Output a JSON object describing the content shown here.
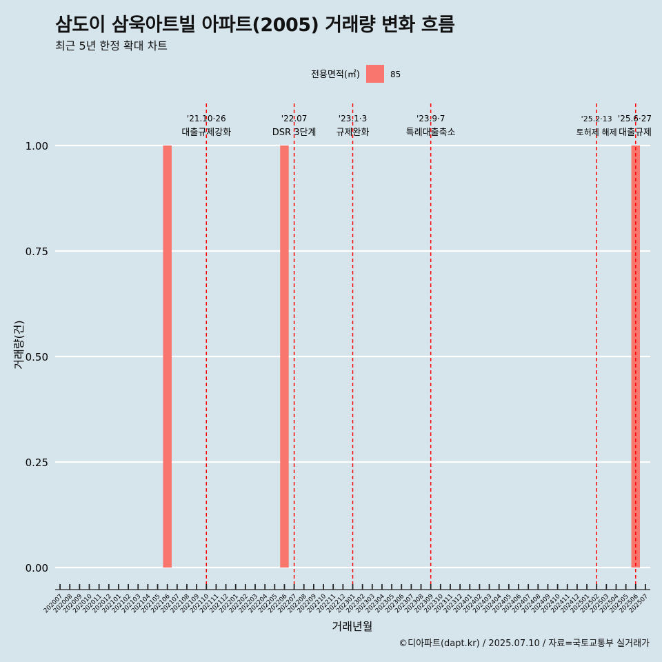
{
  "title": "삼도이 삼욱아트빌 아파트(2005) 거래량 변화 흐름",
  "subtitle": "최근 5년 한정 확대 차트",
  "caption": "©디아파트(dapt.kr) / 2025.07.10 / 자료=국토교통부 실거래가",
  "colors": {
    "background": "#d6e4eb",
    "bar": "#f8766d",
    "grid": "#ffffff",
    "event_line": "#ff0000"
  },
  "chart_data": {
    "type": "bar",
    "xlabel": "거래년월",
    "ylabel": "거래량(건)",
    "ylim": [
      0,
      1
    ],
    "yticks": [
      "0.00",
      "0.25",
      "0.50",
      "0.75",
      "1.00"
    ],
    "legend": {
      "title": "전용면적(㎡)",
      "position": "top"
    },
    "categories": [
      "202007",
      "202008",
      "202009",
      "202010",
      "202011",
      "202012",
      "202101",
      "202102",
      "202103",
      "202104",
      "202105",
      "202106",
      "202107",
      "202108",
      "202109",
      "202110",
      "202111",
      "202112",
      "202201",
      "202202",
      "202203",
      "202204",
      "202205",
      "202206",
      "202207",
      "202208",
      "202209",
      "202210",
      "202211",
      "202212",
      "202301",
      "202302",
      "202303",
      "202304",
      "202305",
      "202306",
      "202307",
      "202308",
      "202309",
      "202310",
      "202311",
      "202312",
      "202401",
      "202402",
      "202403",
      "202404",
      "202405",
      "202406",
      "202407",
      "202408",
      "202409",
      "202410",
      "202411",
      "202412",
      "202501",
      "202502",
      "202503",
      "202504",
      "202505",
      "202506",
      "202507"
    ],
    "series": [
      {
        "name": "85",
        "bars": [
          {
            "x": "202106",
            "value": 1
          },
          {
            "x": "202206",
            "value": 1
          },
          {
            "x": "202506",
            "value": 1
          }
        ]
      }
    ],
    "events": [
      {
        "x": "202110",
        "date": "'21.10·26",
        "label": "대출규제강화"
      },
      {
        "x": "202207",
        "date": "'22.07",
        "label": "DSR 3단계"
      },
      {
        "x": "202301",
        "date": "'23.1·3",
        "label": "규제완화"
      },
      {
        "x": "202309",
        "date": "'23.9·7",
        "label": "특례대출축소"
      },
      {
        "x": "202502",
        "date": "'25.2·13",
        "label": "토허제 해제"
      },
      {
        "x": "202506",
        "date": "'25.6·27",
        "label": "대출규제"
      }
    ]
  }
}
